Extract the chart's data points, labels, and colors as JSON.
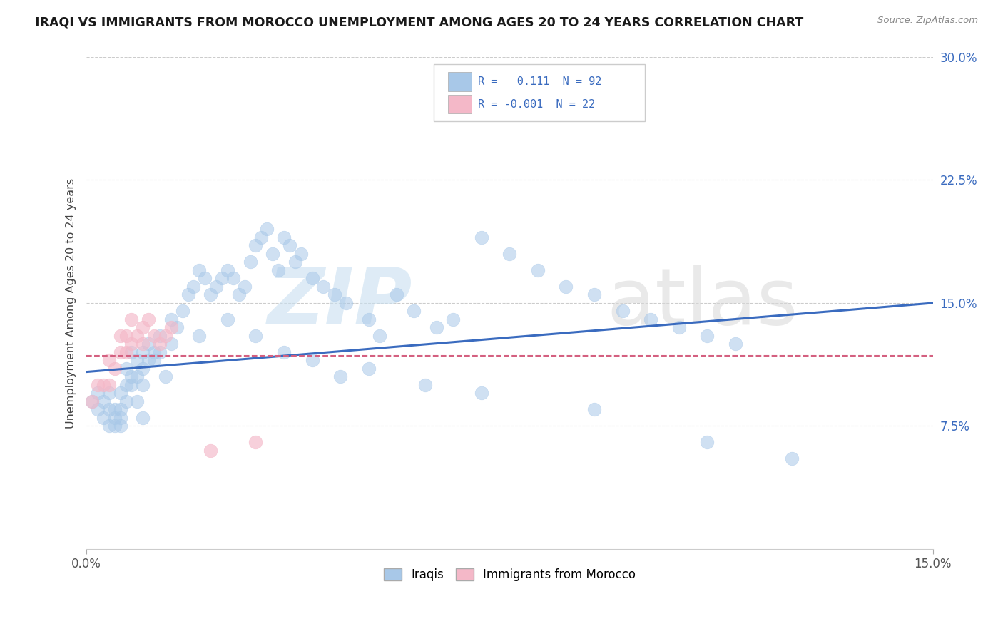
{
  "title": "IRAQI VS IMMIGRANTS FROM MOROCCO UNEMPLOYMENT AMONG AGES 20 TO 24 YEARS CORRELATION CHART",
  "source": "Source: ZipAtlas.com",
  "xlim": [
    0.0,
    0.15
  ],
  "ylim": [
    0.0,
    0.3
  ],
  "yticks": [
    0.075,
    0.15,
    0.225,
    0.3
  ],
  "ytick_labels": [
    "7.5%",
    "15.0%",
    "22.5%",
    "30.0%"
  ],
  "xticks": [
    0.0,
    0.15
  ],
  "xtick_labels": [
    "0.0%",
    "15.0%"
  ],
  "blue_color": "#a8c8e8",
  "pink_color": "#f4b8c8",
  "trend_blue": "#3a6bbf",
  "trend_pink": "#d46080",
  "ylabel": "Unemployment Among Ages 20 to 24 years",
  "iraq_trend_start_y": 0.108,
  "iraq_trend_end_y": 0.15,
  "morocco_trend_start_y": 0.118,
  "morocco_trend_end_y": 0.118,
  "iraq_x": [
    0.001,
    0.002,
    0.002,
    0.003,
    0.003,
    0.004,
    0.004,
    0.004,
    0.005,
    0.005,
    0.005,
    0.006,
    0.006,
    0.006,
    0.006,
    0.007,
    0.007,
    0.007,
    0.008,
    0.008,
    0.008,
    0.009,
    0.009,
    0.009,
    0.01,
    0.01,
    0.01,
    0.01,
    0.011,
    0.011,
    0.012,
    0.012,
    0.013,
    0.013,
    0.014,
    0.015,
    0.015,
    0.016,
    0.017,
    0.018,
    0.019,
    0.02,
    0.021,
    0.022,
    0.023,
    0.024,
    0.025,
    0.026,
    0.027,
    0.028,
    0.029,
    0.03,
    0.031,
    0.032,
    0.033,
    0.034,
    0.035,
    0.036,
    0.037,
    0.038,
    0.04,
    0.042,
    0.044,
    0.046,
    0.05,
    0.052,
    0.055,
    0.058,
    0.062,
    0.065,
    0.07,
    0.075,
    0.08,
    0.085,
    0.09,
    0.095,
    0.1,
    0.105,
    0.11,
    0.115,
    0.02,
    0.025,
    0.03,
    0.035,
    0.04,
    0.045,
    0.05,
    0.06,
    0.07,
    0.09,
    0.11,
    0.125
  ],
  "iraq_y": [
    0.09,
    0.085,
    0.095,
    0.09,
    0.08,
    0.075,
    0.085,
    0.095,
    0.08,
    0.075,
    0.085,
    0.075,
    0.08,
    0.085,
    0.095,
    0.09,
    0.1,
    0.11,
    0.1,
    0.105,
    0.12,
    0.105,
    0.115,
    0.09,
    0.1,
    0.11,
    0.12,
    0.08,
    0.115,
    0.125,
    0.12,
    0.115,
    0.13,
    0.12,
    0.105,
    0.14,
    0.125,
    0.135,
    0.145,
    0.155,
    0.16,
    0.17,
    0.165,
    0.155,
    0.16,
    0.165,
    0.17,
    0.165,
    0.155,
    0.16,
    0.175,
    0.185,
    0.19,
    0.195,
    0.18,
    0.17,
    0.19,
    0.185,
    0.175,
    0.18,
    0.165,
    0.16,
    0.155,
    0.15,
    0.14,
    0.13,
    0.155,
    0.145,
    0.135,
    0.14,
    0.19,
    0.18,
    0.17,
    0.16,
    0.155,
    0.145,
    0.14,
    0.135,
    0.13,
    0.125,
    0.13,
    0.14,
    0.13,
    0.12,
    0.115,
    0.105,
    0.11,
    0.1,
    0.095,
    0.085,
    0.065,
    0.055
  ],
  "morocco_x": [
    0.001,
    0.002,
    0.003,
    0.004,
    0.004,
    0.005,
    0.006,
    0.006,
    0.007,
    0.007,
    0.008,
    0.008,
    0.009,
    0.01,
    0.01,
    0.011,
    0.012,
    0.013,
    0.014,
    0.015,
    0.022,
    0.03
  ],
  "morocco_y": [
    0.09,
    0.1,
    0.1,
    0.1,
    0.115,
    0.11,
    0.12,
    0.13,
    0.12,
    0.13,
    0.125,
    0.14,
    0.13,
    0.125,
    0.135,
    0.14,
    0.13,
    0.125,
    0.13,
    0.135,
    0.06,
    0.065
  ]
}
